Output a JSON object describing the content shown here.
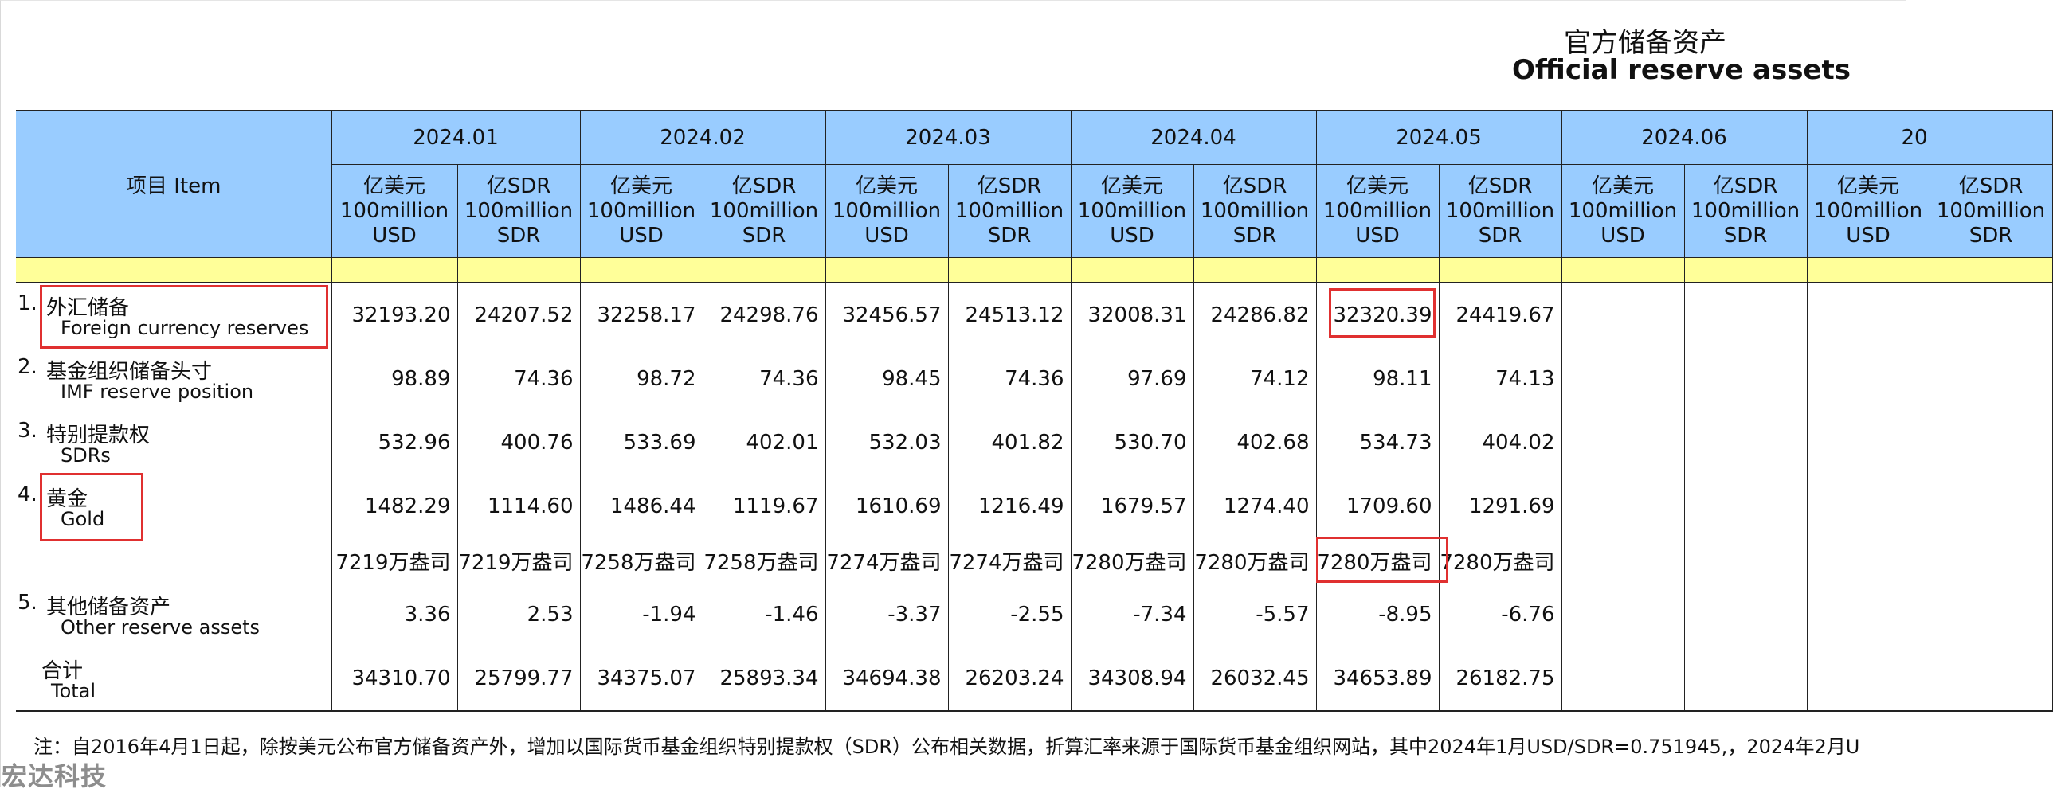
{
  "title": {
    "zh": "官方储备资产",
    "en": "Official reserve assets"
  },
  "header": {
    "item_label": "项目 Item",
    "months": [
      "2024.01",
      "2024.02",
      "2024.03",
      "2024.04",
      "2024.05",
      "2024.06",
      "20"
    ],
    "unit_usd": [
      "亿美元",
      "100million",
      "USD"
    ],
    "unit_sdr": [
      "亿SDR",
      "100million",
      "SDR"
    ]
  },
  "rows": [
    {
      "idx": "1.",
      "zh": "外汇储备",
      "en": "Foreign currency reserves",
      "values": [
        "32193.20",
        "24207.52",
        "32258.17",
        "24298.76",
        "32456.57",
        "24513.12",
        "32008.31",
        "24286.82",
        "32320.39",
        "24419.67"
      ]
    },
    {
      "idx": "2.",
      "zh": "基金组织储备头寸",
      "en": "IMF reserve position",
      "values": [
        "98.89",
        "74.36",
        "98.72",
        "74.36",
        "98.45",
        "74.36",
        "97.69",
        "74.12",
        "98.11",
        "74.13"
      ]
    },
    {
      "idx": "3.",
      "zh": "特别提款权",
      "en": "SDRs",
      "values": [
        "532.96",
        "400.76",
        "533.69",
        "402.01",
        "532.03",
        "401.82",
        "530.70",
        "402.68",
        "534.73",
        "404.02"
      ]
    },
    {
      "idx": "4.",
      "zh": "黄金",
      "en": "Gold",
      "values": [
        "1482.29",
        "1114.60",
        "1486.44",
        "1119.67",
        "1610.69",
        "1216.49",
        "1679.57",
        "1274.40",
        "1709.60",
        "1291.69"
      ]
    },
    {
      "idx": "",
      "zh": "",
      "en": "",
      "values": [
        "7219万盎司",
        "7219万盎司",
        "7258万盎司",
        "7258万盎司",
        "7274万盎司",
        "7274万盎司",
        "7280万盎司",
        "7280万盎司",
        "7280万盎司",
        "7280万盎司"
      ]
    },
    {
      "idx": "5.",
      "zh": "其他储备资产",
      "en": "Other reserve assets",
      "values": [
        "3.36",
        "2.53",
        "-1.94",
        "-1.46",
        "-3.37",
        "-2.55",
        "-7.34",
        "-5.57",
        "-8.95",
        "-6.76"
      ]
    },
    {
      "idx": "",
      "zh": "合计",
      "en": "Total",
      "values": [
        "34310.70",
        "25799.77",
        "34375.07",
        "25893.34",
        "34694.38",
        "26203.24",
        "34308.94",
        "26032.45",
        "34653.89",
        "26182.75"
      ]
    }
  ],
  "note": "注：自2016年4月1日起，除按美元公布官方储备资产外，增加以国际货币基金组织特别提款权（SDR）公布相关数据，折算汇率来源于国际货币基金组织网站，其中2024年1月USD/SDR=0.751945,，2024年2月U",
  "watermark": "宏达科技",
  "colors": {
    "header_bg": "#99ccff",
    "separator_bg": "#ffff99",
    "highlight": "#e03030"
  }
}
